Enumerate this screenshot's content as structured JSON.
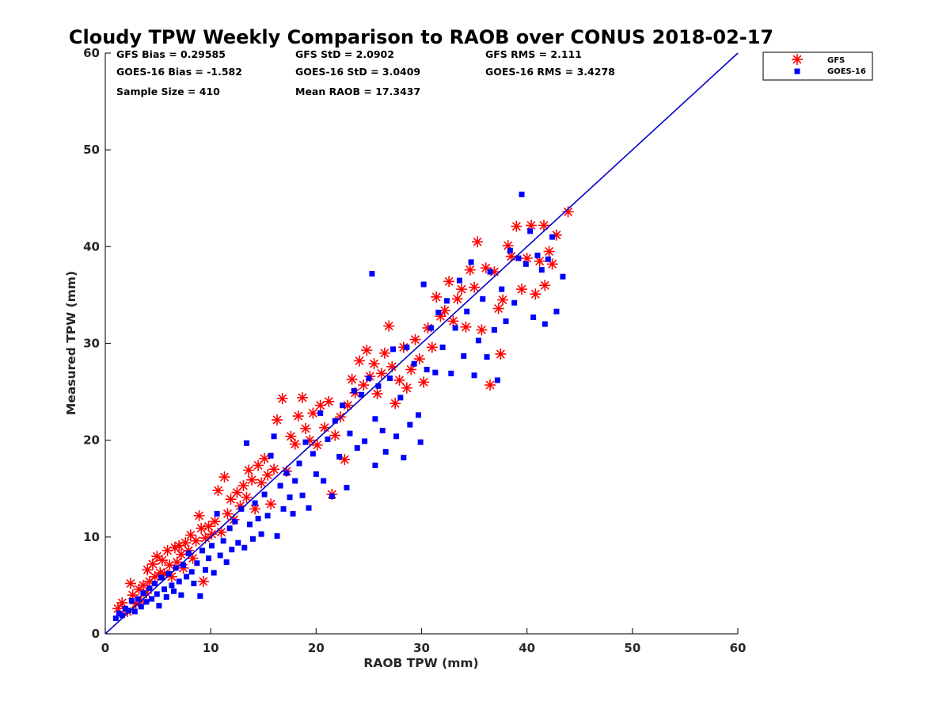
{
  "chart_data": {
    "type": "scatter",
    "title": "Cloudy TPW Weekly Comparison to RAOB over CONUS 2018-02-17",
    "xlabel": "RAOB TPW (mm)",
    "ylabel": "Measured TPW (mm)",
    "xlim": [
      0,
      60
    ],
    "ylim": [
      0,
      60
    ],
    "xticks": [
      "0",
      "10",
      "20",
      "30",
      "40",
      "50",
      "60"
    ],
    "yticks": [
      "0",
      "10",
      "20",
      "30",
      "40",
      "50",
      "60"
    ],
    "grid": false,
    "legend_position": "top-right, outside plot",
    "reference_line": {
      "type": "one-to-one",
      "x": [
        0,
        60
      ],
      "y": [
        0,
        60
      ],
      "color": "#0000cc"
    },
    "stats": {
      "gfs_bias": "GFS Bias = 0.29585",
      "gfs_std": "GFS StD = 2.0902",
      "gfs_rms": "GFS RMS = 2.111",
      "goes_bias": "GOES-16 Bias = -1.582",
      "goes_std": "GOES-16 StD = 3.0409",
      "goes_rms": "GOES-16 RMS = 3.4278",
      "sample_size": "Sample Size = 410",
      "mean_raob": "Mean RAOB = 17.3437"
    },
    "series": [
      {
        "name": "GFS",
        "marker": "asterisk",
        "color": "#ff0000",
        "points": [
          [
            1.2,
            2.6
          ],
          [
            1.6,
            3.2
          ],
          [
            2.1,
            2.3
          ],
          [
            2.4,
            5.2
          ],
          [
            2.6,
            4.0
          ],
          [
            2.9,
            3.1
          ],
          [
            3.2,
            4.6
          ],
          [
            3.4,
            3.4
          ],
          [
            3.6,
            5.0
          ],
          [
            3.9,
            4.2
          ],
          [
            4.0,
            6.6
          ],
          [
            4.2,
            5.4
          ],
          [
            4.5,
            7.2
          ],
          [
            4.7,
            5.9
          ],
          [
            4.9,
            8.0
          ],
          [
            5.2,
            6.3
          ],
          [
            5.4,
            7.6
          ],
          [
            5.6,
            6.2
          ],
          [
            5.9,
            8.6
          ],
          [
            6.1,
            7.1
          ],
          [
            6.3,
            5.9
          ],
          [
            6.6,
            8.9
          ],
          [
            6.8,
            7.4
          ],
          [
            7.0,
            9.1
          ],
          [
            7.2,
            8.2
          ],
          [
            7.4,
            6.8
          ],
          [
            7.6,
            9.4
          ],
          [
            7.9,
            8.6
          ],
          [
            8.1,
            10.2
          ],
          [
            8.3,
            7.8
          ],
          [
            8.6,
            9.6
          ],
          [
            8.9,
            12.2
          ],
          [
            9.1,
            10.9
          ],
          [
            9.3,
            5.4
          ],
          [
            9.5,
            9.9
          ],
          [
            9.8,
            11.1
          ],
          [
            10.1,
            10.3
          ],
          [
            10.4,
            11.6
          ],
          [
            10.7,
            14.8
          ],
          [
            11.0,
            10.5
          ],
          [
            11.3,
            16.2
          ],
          [
            11.6,
            12.4
          ],
          [
            11.9,
            13.9
          ],
          [
            12.2,
            11.8
          ],
          [
            12.5,
            14.6
          ],
          [
            12.8,
            13.2
          ],
          [
            13.1,
            15.3
          ],
          [
            13.4,
            14.1
          ],
          [
            13.6,
            16.9
          ],
          [
            13.9,
            15.9
          ],
          [
            14.2,
            12.9
          ],
          [
            14.5,
            17.4
          ],
          [
            14.8,
            15.6
          ],
          [
            15.1,
            18.1
          ],
          [
            15.4,
            16.4
          ],
          [
            15.7,
            13.4
          ],
          [
            16.0,
            17.0
          ],
          [
            16.3,
            22.1
          ],
          [
            16.8,
            24.3
          ],
          [
            17.2,
            16.8
          ],
          [
            17.6,
            20.4
          ],
          [
            18.0,
            19.6
          ],
          [
            18.3,
            22.5
          ],
          [
            18.7,
            24.4
          ],
          [
            19.0,
            21.2
          ],
          [
            19.4,
            20.0
          ],
          [
            19.7,
            22.8
          ],
          [
            20.1,
            19.5
          ],
          [
            20.4,
            23.6
          ],
          [
            20.8,
            21.3
          ],
          [
            21.2,
            24.0
          ],
          [
            21.5,
            14.4
          ],
          [
            21.8,
            20.5
          ],
          [
            22.3,
            22.4
          ],
          [
            22.7,
            18.0
          ],
          [
            23.0,
            23.6
          ],
          [
            23.4,
            26.3
          ],
          [
            23.7,
            24.9
          ],
          [
            24.1,
            28.2
          ],
          [
            24.5,
            25.7
          ],
          [
            24.8,
            29.3
          ],
          [
            25.1,
            26.6
          ],
          [
            25.5,
            27.9
          ],
          [
            25.8,
            24.8
          ],
          [
            26.2,
            26.9
          ],
          [
            26.5,
            29.0
          ],
          [
            26.9,
            31.8
          ],
          [
            27.2,
            27.6
          ],
          [
            27.5,
            23.8
          ],
          [
            27.9,
            26.2
          ],
          [
            28.3,
            29.6
          ],
          [
            28.6,
            25.4
          ],
          [
            29.0,
            27.3
          ],
          [
            29.4,
            30.4
          ],
          [
            29.8,
            28.4
          ],
          [
            30.2,
            26.0
          ],
          [
            30.6,
            31.6
          ],
          [
            31.0,
            29.6
          ],
          [
            31.4,
            34.8
          ],
          [
            31.8,
            32.8
          ],
          [
            32.2,
            33.4
          ],
          [
            32.6,
            36.4
          ],
          [
            33.0,
            32.3
          ],
          [
            33.4,
            34.6
          ],
          [
            33.8,
            35.6
          ],
          [
            34.2,
            31.7
          ],
          [
            34.6,
            37.6
          ],
          [
            35.0,
            35.8
          ],
          [
            35.3,
            40.5
          ],
          [
            35.7,
            31.4
          ],
          [
            36.1,
            37.8
          ],
          [
            36.5,
            25.7
          ],
          [
            36.9,
            37.4
          ],
          [
            37.3,
            33.6
          ],
          [
            37.5,
            28.9
          ],
          [
            37.7,
            34.5
          ],
          [
            38.2,
            40.1
          ],
          [
            38.5,
            39.0
          ],
          [
            39.0,
            42.1
          ],
          [
            39.5,
            35.6
          ],
          [
            40.0,
            38.8
          ],
          [
            40.4,
            42.2
          ],
          [
            40.8,
            35.1
          ],
          [
            41.2,
            38.5
          ],
          [
            41.6,
            42.2
          ],
          [
            41.7,
            36.0
          ],
          [
            42.1,
            39.5
          ],
          [
            42.4,
            38.2
          ],
          [
            42.8,
            41.2
          ],
          [
            43.9,
            43.6
          ]
        ]
      },
      {
        "name": "GOES-16",
        "marker": "square",
        "color": "#0000ff",
        "points": [
          [
            1.0,
            1.6
          ],
          [
            1.3,
            2.1
          ],
          [
            1.6,
            1.9
          ],
          [
            1.9,
            2.6
          ],
          [
            2.2,
            2.4
          ],
          [
            2.5,
            3.4
          ],
          [
            2.8,
            2.3
          ],
          [
            3.1,
            3.6
          ],
          [
            3.4,
            2.8
          ],
          [
            3.6,
            4.2
          ],
          [
            3.9,
            3.3
          ],
          [
            4.2,
            4.7
          ],
          [
            4.4,
            3.6
          ],
          [
            4.7,
            5.2
          ],
          [
            4.9,
            4.1
          ],
          [
            5.1,
            2.9
          ],
          [
            5.3,
            5.8
          ],
          [
            5.6,
            4.6
          ],
          [
            5.8,
            3.8
          ],
          [
            6.0,
            6.2
          ],
          [
            6.3,
            5.0
          ],
          [
            6.5,
            4.4
          ],
          [
            6.7,
            6.8
          ],
          [
            7.0,
            5.4
          ],
          [
            7.2,
            4.0
          ],
          [
            7.4,
            7.1
          ],
          [
            7.7,
            5.9
          ],
          [
            7.9,
            8.3
          ],
          [
            8.2,
            6.4
          ],
          [
            8.4,
            5.2
          ],
          [
            8.7,
            7.3
          ],
          [
            9.0,
            3.9
          ],
          [
            9.2,
            8.6
          ],
          [
            9.5,
            6.6
          ],
          [
            9.8,
            7.8
          ],
          [
            10.1,
            9.1
          ],
          [
            10.3,
            6.3
          ],
          [
            10.6,
            12.4
          ],
          [
            10.9,
            8.1
          ],
          [
            11.2,
            9.6
          ],
          [
            11.5,
            7.4
          ],
          [
            11.8,
            10.9
          ],
          [
            12.0,
            8.7
          ],
          [
            12.3,
            11.6
          ],
          [
            12.6,
            9.4
          ],
          [
            12.9,
            12.9
          ],
          [
            13.2,
            8.9
          ],
          [
            13.4,
            19.7
          ],
          [
            13.7,
            11.3
          ],
          [
            14.0,
            9.8
          ],
          [
            14.2,
            13.5
          ],
          [
            14.5,
            11.9
          ],
          [
            14.8,
            10.3
          ],
          [
            15.1,
            14.4
          ],
          [
            15.4,
            12.2
          ],
          [
            15.7,
            18.4
          ],
          [
            16.0,
            20.4
          ],
          [
            16.3,
            10.1
          ],
          [
            16.6,
            15.3
          ],
          [
            16.9,
            12.9
          ],
          [
            17.2,
            16.6
          ],
          [
            17.5,
            14.1
          ],
          [
            17.8,
            12.4
          ],
          [
            18.0,
            15.8
          ],
          [
            18.4,
            17.6
          ],
          [
            18.7,
            14.3
          ],
          [
            19.0,
            19.8
          ],
          [
            19.3,
            13.0
          ],
          [
            19.7,
            18.6
          ],
          [
            20.0,
            16.5
          ],
          [
            20.4,
            22.8
          ],
          [
            20.7,
            15.8
          ],
          [
            21.1,
            20.1
          ],
          [
            21.5,
            14.2
          ],
          [
            21.8,
            22.0
          ],
          [
            22.2,
            18.3
          ],
          [
            22.5,
            23.6
          ],
          [
            22.9,
            15.1
          ],
          [
            23.2,
            20.7
          ],
          [
            23.6,
            25.1
          ],
          [
            23.9,
            19.2
          ],
          [
            24.3,
            24.7
          ],
          [
            24.6,
            19.9
          ],
          [
            25.0,
            26.4
          ],
          [
            25.3,
            37.2
          ],
          [
            25.6,
            22.2
          ],
          [
            25.6,
            17.4
          ],
          [
            25.9,
            25.6
          ],
          [
            26.3,
            21.0
          ],
          [
            26.6,
            18.8
          ],
          [
            27.0,
            26.4
          ],
          [
            27.3,
            29.4
          ],
          [
            27.6,
            20.4
          ],
          [
            28.0,
            24.4
          ],
          [
            28.3,
            18.2
          ],
          [
            28.6,
            29.6
          ],
          [
            28.9,
            21.6
          ],
          [
            29.3,
            27.9
          ],
          [
            29.7,
            22.6
          ],
          [
            29.9,
            19.8
          ],
          [
            30.2,
            36.1
          ],
          [
            30.5,
            27.3
          ],
          [
            30.9,
            31.6
          ],
          [
            31.3,
            27.0
          ],
          [
            31.6,
            33.2
          ],
          [
            32.0,
            29.6
          ],
          [
            32.4,
            34.4
          ],
          [
            32.8,
            26.9
          ],
          [
            33.2,
            31.6
          ],
          [
            33.6,
            36.5
          ],
          [
            34.0,
            28.7
          ],
          [
            34.3,
            33.3
          ],
          [
            34.7,
            38.4
          ],
          [
            35.0,
            26.7
          ],
          [
            35.4,
            30.3
          ],
          [
            35.8,
            34.6
          ],
          [
            36.2,
            28.6
          ],
          [
            36.5,
            37.4
          ],
          [
            36.9,
            31.4
          ],
          [
            37.2,
            26.2
          ],
          [
            37.6,
            35.6
          ],
          [
            38.0,
            32.3
          ],
          [
            38.4,
            39.6
          ],
          [
            38.8,
            34.2
          ],
          [
            39.2,
            38.8
          ],
          [
            39.5,
            45.4
          ],
          [
            39.9,
            38.2
          ],
          [
            40.3,
            41.6
          ],
          [
            40.6,
            32.7
          ],
          [
            41.0,
            39.1
          ],
          [
            41.4,
            37.6
          ],
          [
            41.7,
            32.0
          ],
          [
            42.0,
            38.7
          ],
          [
            42.4,
            41.0
          ],
          [
            42.8,
            33.3
          ],
          [
            43.4,
            36.9
          ]
        ]
      }
    ],
    "legend": [
      {
        "label": "GFS",
        "marker": "asterisk",
        "color": "#ff0000"
      },
      {
        "label": "GOES-16",
        "marker": "square",
        "color": "#0000ff"
      }
    ]
  }
}
